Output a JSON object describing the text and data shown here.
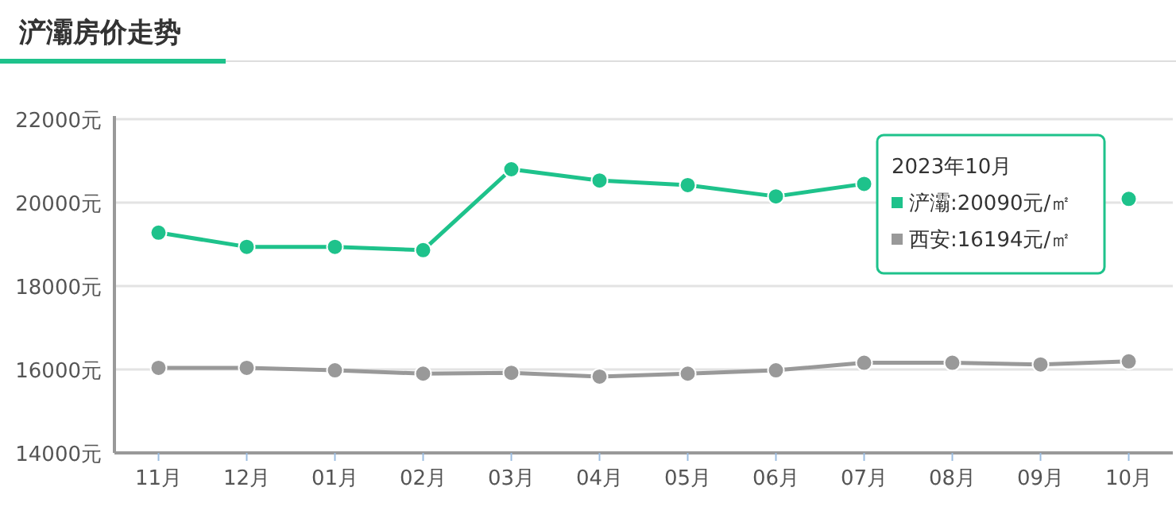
{
  "chart_data": {
    "type": "line",
    "title": "浐灞房价走势",
    "categories": [
      "11月",
      "12月",
      "01月",
      "02月",
      "03月",
      "04月",
      "05月",
      "06月",
      "07月",
      "08月",
      "09月",
      "10月"
    ],
    "series": [
      {
        "color": "#1ec28b",
        "values": [
          19280,
          18940,
          18940,
          18860,
          20800,
          20530,
          20420,
          20150,
          20450,
          null,
          null,
          20090
        ]
      },
      {
        "color": "#999999",
        "values": [
          16040,
          16040,
          15980,
          15900,
          15920,
          15830,
          15900,
          15980,
          16160,
          16160,
          16120,
          16194
        ]
      }
    ],
    "annotations": [
      "2023年10月",
      "浐灞:20090元/㎡",
      "西安:16194元/㎡"
    ],
    "ylim": [
      14000,
      22000
    ],
    "yticks": [
      {
        "value": 14000,
        "label": "14000元"
      },
      {
        "value": 16000,
        "label": "16000元"
      },
      {
        "value": 18000,
        "label": "18000元"
      },
      {
        "value": 20000,
        "label": "20000元"
      },
      {
        "value": 22000,
        "label": "22000元"
      }
    ],
    "grid": "y",
    "marker": "circle",
    "line_style": "solid"
  }
}
